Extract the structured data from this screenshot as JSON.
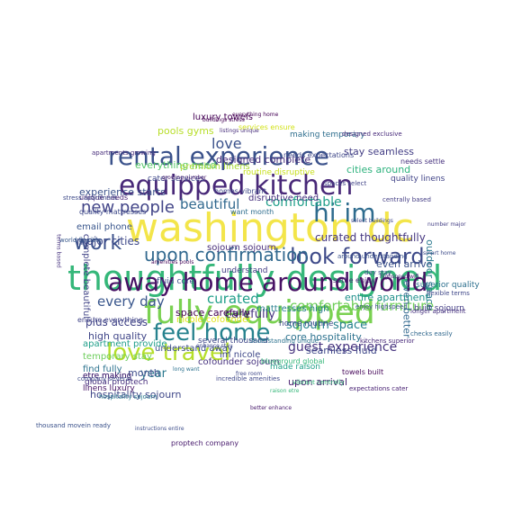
{
  "words": [
    {
      "text": "washington dc",
      "color": "#f3e54a",
      "weight": 100
    },
    {
      "text": "thoughtfully designed",
      "color": "#35b779",
      "weight": 92
    },
    {
      "text": "equipped kitchen",
      "color": "#482878",
      "weight": 80
    },
    {
      "text": "fully equipped",
      "color": "#7ad151",
      "weight": 80
    },
    {
      "text": "rental experience",
      "color": "#3b528b",
      "weight": 66
    },
    {
      "text": "away home around world",
      "color": "#471164",
      "weight": 62
    },
    {
      "text": "love travel",
      "color": "#b5de2b",
      "weight": 58
    },
    {
      "text": "feel home",
      "color": "#26828e",
      "weight": 56
    },
    {
      "text": "look forward",
      "color": "#3e4a89",
      "weight": 50
    },
    {
      "text": "hi im",
      "color": "#2f6c8e",
      "weight": 48
    },
    {
      "text": "upon confirmation",
      "color": "#31688e",
      "weight": 44
    },
    {
      "text": "work",
      "color": "#3b528b",
      "weight": 42
    },
    {
      "text": "new people",
      "color": "#414487",
      "weight": 36
    },
    {
      "text": "love",
      "color": "#3b528b",
      "weight": 34
    },
    {
      "text": "beautiful",
      "color": "#31688e",
      "weight": 30
    },
    {
      "text": "comfortable",
      "color": "#1f9e89",
      "weight": 30
    },
    {
      "text": "comfortable furniture",
      "color": "#6ece58",
      "weight": 28
    },
    {
      "text": "curated",
      "color": "#1f9e89",
      "weight": 28
    },
    {
      "text": "guest experience",
      "color": "#46337e",
      "weight": 28
    },
    {
      "text": "every day",
      "color": "#39568c",
      "weight": 28
    },
    {
      "text": "carefully",
      "color": "#46327e",
      "weight": 26
    },
    {
      "text": "sojourn space",
      "color": "#26828e",
      "weight": 26
    },
    {
      "text": "space carefully",
      "color": "#440154",
      "weight": 22
    },
    {
      "text": "year",
      "color": "#2a788e",
      "weight": 22
    },
    {
      "text": "curated thoughtfully",
      "color": "#453781",
      "weight": 20
    },
    {
      "text": "designed complete",
      "color": "#472d7b",
      "weight": 20
    },
    {
      "text": "everything need",
      "color": "#54c568",
      "weight": 20
    },
    {
      "text": "pools gyms",
      "color": "#b8de29",
      "weight": 20
    },
    {
      "text": "experience starts",
      "color": "#3b528b",
      "weight": 19
    },
    {
      "text": "major cities",
      "color": "#3e4989",
      "weight": 19
    },
    {
      "text": "plus access",
      "color": "#414487",
      "weight": 19
    },
    {
      "text": "core hospitality",
      "color": "#2c728e",
      "weight": 19
    },
    {
      "text": "high quality",
      "color": "#404688",
      "weight": 19
    },
    {
      "text": "hospitality sojourn",
      "color": "#3f4788",
      "weight": 19
    },
    {
      "text": "sojourn sojourn",
      "color": "#472c7a",
      "weight": 18
    },
    {
      "text": "making temporary",
      "color": "#2e6e8e",
      "weight": 18
    },
    {
      "text": "upon arrival",
      "color": "#481f70",
      "weight": 17
    },
    {
      "text": "im nicole",
      "color": "#3f4889",
      "weight": 17
    },
    {
      "text": "month",
      "color": "#3e4c8a",
      "weight": 17
    },
    {
      "text": "even arrive",
      "color": "#3b528b",
      "weight": 16
    },
    {
      "text": "even better",
      "color": "#31688e",
      "weight": 16
    },
    {
      "text": "outdoor space",
      "color": "#2a788e",
      "weight": 16
    },
    {
      "text": "entire apartment",
      "color": "#21918c",
      "weight": 16
    },
    {
      "text": "seamless fluid",
      "color": "#3f4889",
      "weight": 16
    },
    {
      "text": "stay seamless",
      "color": "#433e85",
      "weight": 16
    },
    {
      "text": "cities around",
      "color": "#2db27d",
      "weight": 16
    },
    {
      "text": "email phone",
      "color": "#39568c",
      "weight": 16
    },
    {
      "text": "understand away",
      "color": "#3d4d8a",
      "weight": 15
    },
    {
      "text": "temporary stay",
      "color": "#6ccd5a",
      "weight": 15
    },
    {
      "text": "apartment provide",
      "color": "#1f9e89",
      "weight": 15
    },
    {
      "text": "complete beautiful",
      "color": "#414487",
      "weight": 15
    },
    {
      "text": "quality linens",
      "color": "#404387",
      "weight": 14
    },
    {
      "text": "luxury towels",
      "color": "#440154",
      "weight": 14
    },
    {
      "text": "find fully",
      "color": "#2c728e",
      "weight": 14
    },
    {
      "text": "cofounder sojourn",
      "color": "#46327e",
      "weight": 14
    },
    {
      "text": "mattresses high",
      "color": "#277f8e",
      "weight": 14
    },
    {
      "text": "superior quality",
      "color": "#2d708e",
      "weight": 13
    },
    {
      "text": "built sojourn",
      "color": "#433d84",
      "weight": 13
    },
    {
      "text": "nicole cofounder",
      "color": "#e2e418",
      "weight": 13
    },
    {
      "text": "home routine",
      "color": "#3e4a89",
      "weight": 13
    },
    {
      "text": "needs expectations",
      "color": "#3f4788",
      "weight": 12
    },
    {
      "text": "premium linens",
      "color": "#a8db34",
      "weight": 12
    },
    {
      "text": "disruptive need",
      "color": "#46307e",
      "weight": 12
    },
    {
      "text": "quality mattresses",
      "color": "#3e4989",
      "weight": 11
    },
    {
      "text": "unique needs",
      "color": "#482576",
      "weight": 11
    },
    {
      "text": "made raison",
      "color": "#1f9f88",
      "weight": 11
    },
    {
      "text": "global proptech",
      "color": "#472f7d",
      "weight": 11
    },
    {
      "text": "linens luxury",
      "color": "#471365",
      "weight": 11
    },
    {
      "text": "etre making",
      "color": "#3b528b",
      "weight": 11
    },
    {
      "text": "etre making",
      "color": "#481d6f",
      "weight": 11
    },
    {
      "text": "towels built",
      "color": "#46075a",
      "weight": 11
    },
    {
      "text": "fluid core",
      "color": "#3d4e8a",
      "weight": 11
    },
    {
      "text": "bluegrourd global",
      "color": "#35b779",
      "weight": 10
    },
    {
      "text": "ensure everything",
      "color": "#414487",
      "weight": 10
    },
    {
      "text": "several thousand",
      "color": "#3f4788",
      "weight": 10
    },
    {
      "text": "cater services",
      "color": "#3e4989",
      "weight": 10
    },
    {
      "text": "understand",
      "color": "#433e85",
      "weight": 10
    },
    {
      "text": "settle enjoy",
      "color": "#482374",
      "weight": 10
    },
    {
      "text": "routine disruptive",
      "color": "#c8e020",
      "weight": 10
    },
    {
      "text": "proptech company",
      "color": "#481b6d",
      "weight": 9
    },
    {
      "text": "thousand movein ready",
      "color": "#3b528b",
      "weight": 9
    },
    {
      "text": "hospitality sojourn",
      "color": "#2a788e",
      "weight": 9
    },
    {
      "text": "centrally based",
      "color": "#433d84",
      "weight": 9
    },
    {
      "text": "company several",
      "color": "#3e4c8a",
      "weight": 9
    },
    {
      "text": "around understanding",
      "color": "#3b528b",
      "weight": 9
    },
    {
      "text": "expectations cater",
      "color": "#482173",
      "weight": 9
    },
    {
      "text": "services ensure",
      "color": "#d2e21b",
      "weight": 8
    },
    {
      "text": "homes vibrant",
      "color": "#3e4989",
      "weight": 8
    },
    {
      "text": "want month",
      "color": "#2e6d8e",
      "weight": 8
    },
    {
      "text": "understanding unique",
      "color": "#2c728e",
      "weight": 8
    },
    {
      "text": "incredible amenities",
      "color": "#3f4889",
      "weight": 8
    },
    {
      "text": "kitchens superior",
      "color": "#482979",
      "weight": 8
    },
    {
      "text": "vibrant centrally",
      "color": "#35b779",
      "weight": 8
    },
    {
      "text": "needs settle",
      "color": "#46327e",
      "weight": 8
    },
    {
      "text": "stress apartment",
      "color": "#3e4a89",
      "weight": 8
    },
    {
      "text": "apartments growing",
      "color": "#472d7b",
      "weight": 8
    },
    {
      "text": "world flexible",
      "color": "#38588c",
      "weight": 8
    },
    {
      "text": "buildings stress",
      "color": "#440154",
      "weight": 8
    },
    {
      "text": "enjoy highspeed",
      "color": "#3b528b",
      "weight": 7
    },
    {
      "text": "spaces select",
      "color": "#414487",
      "weight": 7
    },
    {
      "text": "designed exclusive",
      "color": "#472a7a",
      "weight": 7
    },
    {
      "text": "flexible terms",
      "color": "#3f4788",
      "weight": 7
    },
    {
      "text": "longer apartment",
      "color": "#46307e",
      "weight": 7
    },
    {
      "text": "checks easily",
      "color": "#31688e",
      "weight": 7
    },
    {
      "text": "free room",
      "color": "#3f4889",
      "weight": 7
    },
    {
      "text": "long want",
      "color": "#2c728e",
      "weight": 7
    },
    {
      "text": "better enhance",
      "color": "#481b6d",
      "weight": 7
    },
    {
      "text": "day stay",
      "color": "#3d4e8a",
      "weight": 7
    },
    {
      "text": "highspeed wifi",
      "color": "#482475",
      "weight": 7
    },
    {
      "text": "smart home",
      "color": "#3e4c8a",
      "weight": 7
    },
    {
      "text": "select buildings",
      "color": "#3f4788",
      "weight": 7
    },
    {
      "text": "amenities pools",
      "color": "#46075a",
      "weight": 7
    },
    {
      "text": "enhance stay",
      "color": "#3e4989",
      "weight": 6
    },
    {
      "text": "number major",
      "color": "#433e85",
      "weight": 6
    },
    {
      "text": "growing number",
      "color": "#481a6c",
      "weight": 6
    },
    {
      "text": "instructions entire",
      "color": "#3d4d8a",
      "weight": 6
    },
    {
      "text": "listings unique",
      "color": "#472d7b",
      "weight": 6
    },
    {
      "text": "everything home",
      "color": "#440154",
      "weight": 6
    },
    {
      "text": "terms based",
      "color": "#46327e",
      "weight": 6
    },
    {
      "text": "raison etre",
      "color": "#35b779",
      "weight": 6
    }
  ]
}
